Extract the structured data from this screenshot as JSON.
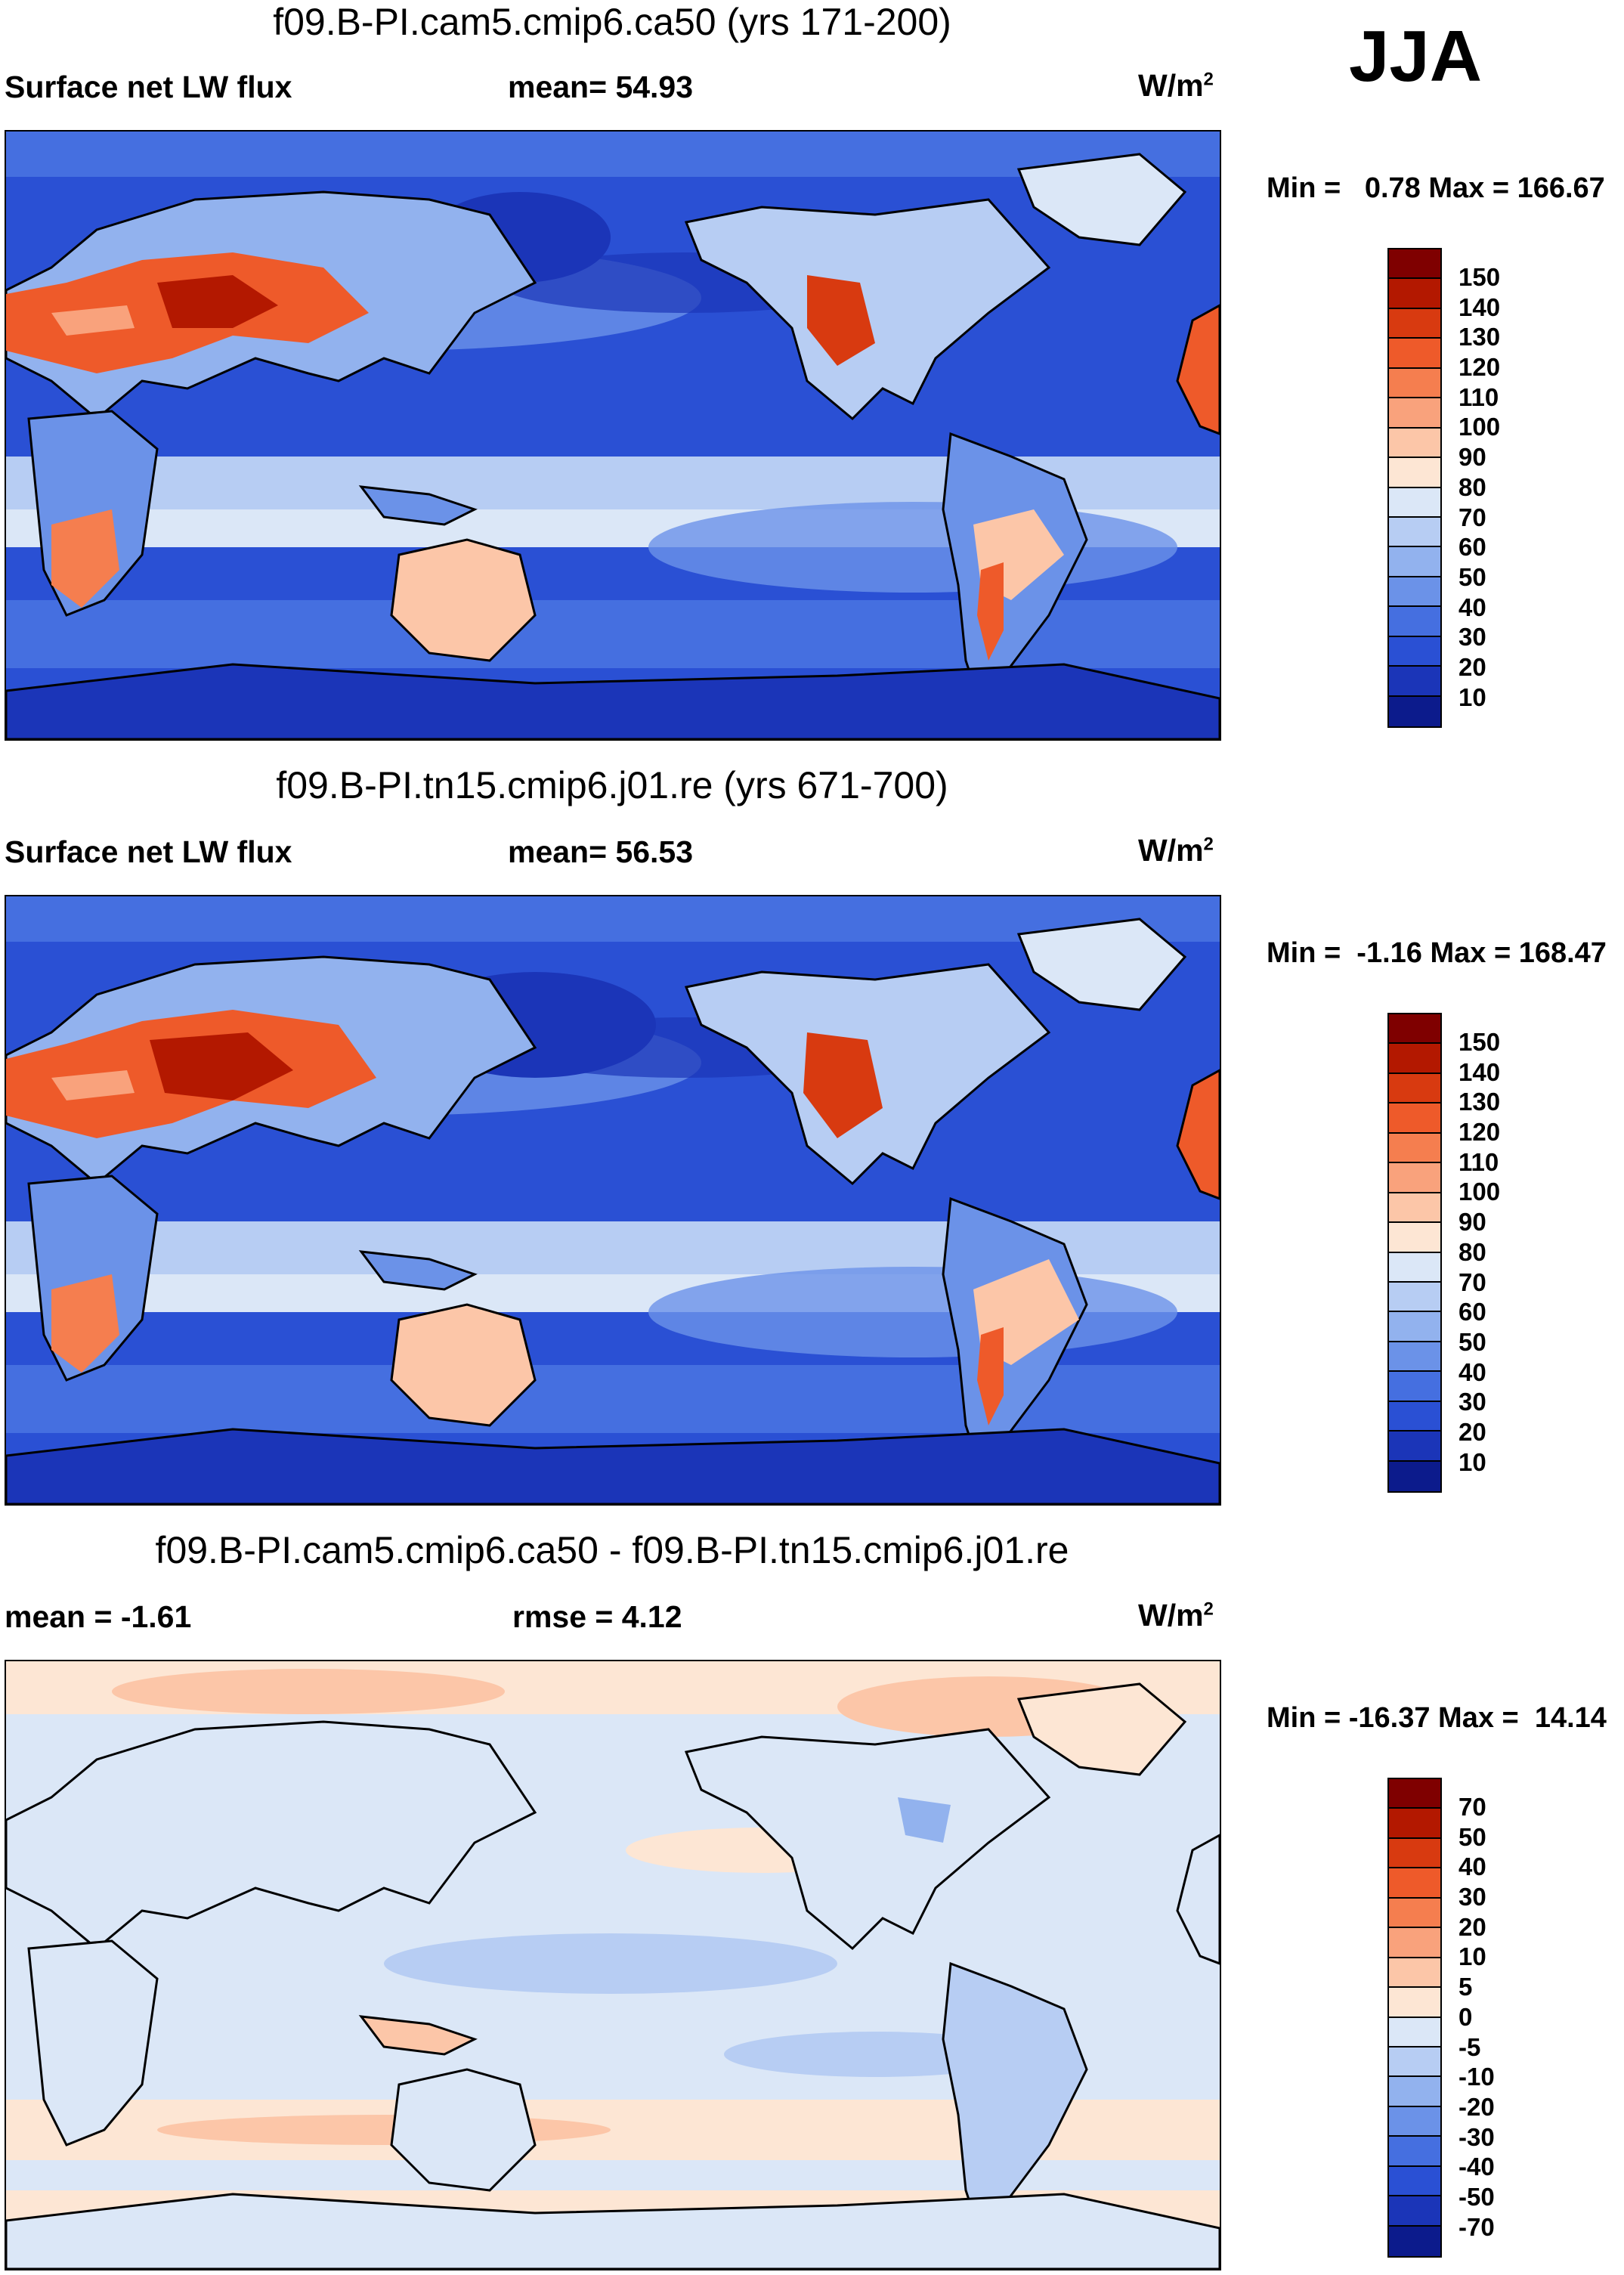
{
  "season": "JJA",
  "panels": [
    {
      "title": "f09.B-PI.cam5.cmip6.ca50 (yrs 171-200)",
      "left_label": "Surface net LW flux",
      "center_label": "mean=  54.93",
      "units": "W/m",
      "units_exp": "2",
      "minmax": "Min =   0.78 Max = 166.67",
      "colorbar": {
        "labels": [
          "150",
          "140",
          "130",
          "120",
          "110",
          "100",
          "90",
          "80",
          "70",
          "60",
          "50",
          "40",
          "30",
          "20",
          "10"
        ],
        "colors": [
          "#7f0000",
          "#b31800",
          "#d83a10",
          "#ee5a2a",
          "#f57e4f",
          "#f9a27c",
          "#fcc6a8",
          "#fde6d4",
          "#dbe7f7",
          "#b7cdf3",
          "#92b2ee",
          "#6b92e8",
          "#456fe0",
          "#2a50d4",
          "#1b35b8",
          "#0c1b8c"
        ]
      }
    },
    {
      "title": "f09.B-PI.tn15.cmip6.j01.re (yrs 671-700)",
      "left_label": "Surface net LW flux",
      "center_label": "mean=  56.53",
      "units": "W/m",
      "units_exp": "2",
      "minmax": "Min =  -1.16 Max = 168.47",
      "colorbar": {
        "labels": [
          "150",
          "140",
          "130",
          "120",
          "110",
          "100",
          "90",
          "80",
          "70",
          "60",
          "50",
          "40",
          "30",
          "20",
          "10"
        ],
        "colors": [
          "#7f0000",
          "#b31800",
          "#d83a10",
          "#ee5a2a",
          "#f57e4f",
          "#f9a27c",
          "#fcc6a8",
          "#fde6d4",
          "#dbe7f7",
          "#b7cdf3",
          "#92b2ee",
          "#6b92e8",
          "#456fe0",
          "#2a50d4",
          "#1b35b8",
          "#0c1b8c"
        ]
      }
    },
    {
      "title": "f09.B-PI.cam5.cmip6.ca50 - f09.B-PI.tn15.cmip6.j01.re",
      "left_label": "mean =  -1.61",
      "center_label": "rmse =    4.12",
      "units": "W/m",
      "units_exp": "2",
      "minmax": "Min = -16.37 Max =  14.14",
      "colorbar": {
        "labels": [
          "70",
          "50",
          "40",
          "30",
          "20",
          "10",
          "5",
          "0",
          "-5",
          "-10",
          "-20",
          "-30",
          "-40",
          "-50",
          "-70"
        ],
        "colors": [
          "#7f0000",
          "#b31800",
          "#d83a10",
          "#ee5a2a",
          "#f57e4f",
          "#f9a27c",
          "#fcc6a8",
          "#fde6d4",
          "#dbe7f7",
          "#b7cdf3",
          "#92b2ee",
          "#6b92e8",
          "#456fe0",
          "#2a50d4",
          "#1b35b8",
          "#0c1b8c"
        ]
      }
    }
  ]
}
